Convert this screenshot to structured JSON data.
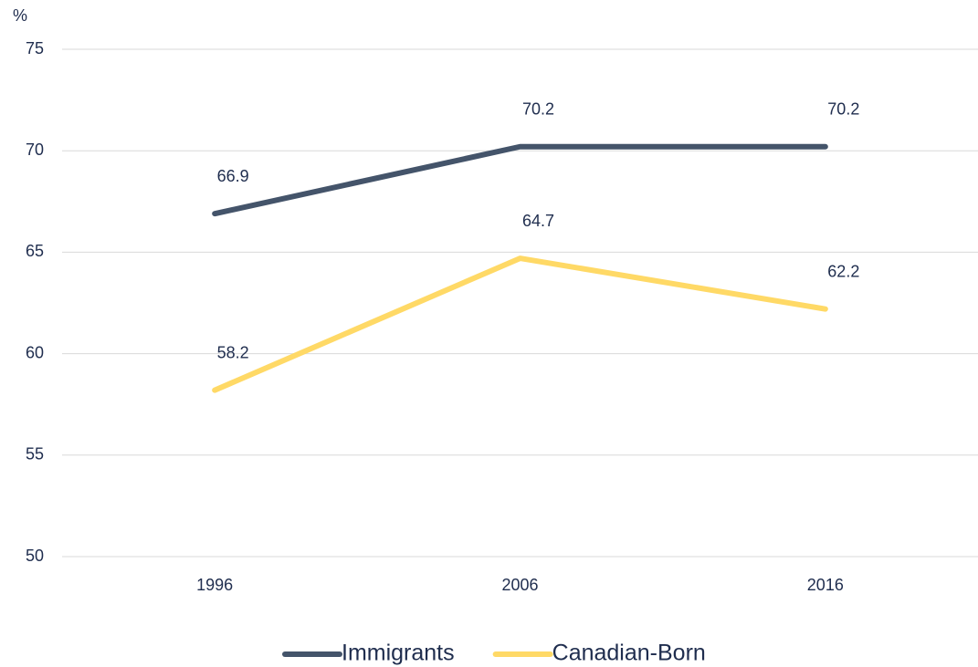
{
  "chart_data": {
    "type": "line",
    "y_axis_label": "%",
    "categories": [
      "1996",
      "2006",
      "2016"
    ],
    "series": [
      {
        "name": "Immigrants",
        "color": "#44546a",
        "values": [
          66.9,
          70.2,
          70.2
        ]
      },
      {
        "name": "Canadian-Born",
        "color": "#ffd966",
        "values": [
          58.2,
          64.7,
          62.2
        ]
      }
    ],
    "ylim": [
      50,
      75
    ],
    "yticks": [
      50,
      55,
      60,
      65,
      70,
      75
    ],
    "grid": true,
    "legend": "bottom"
  }
}
